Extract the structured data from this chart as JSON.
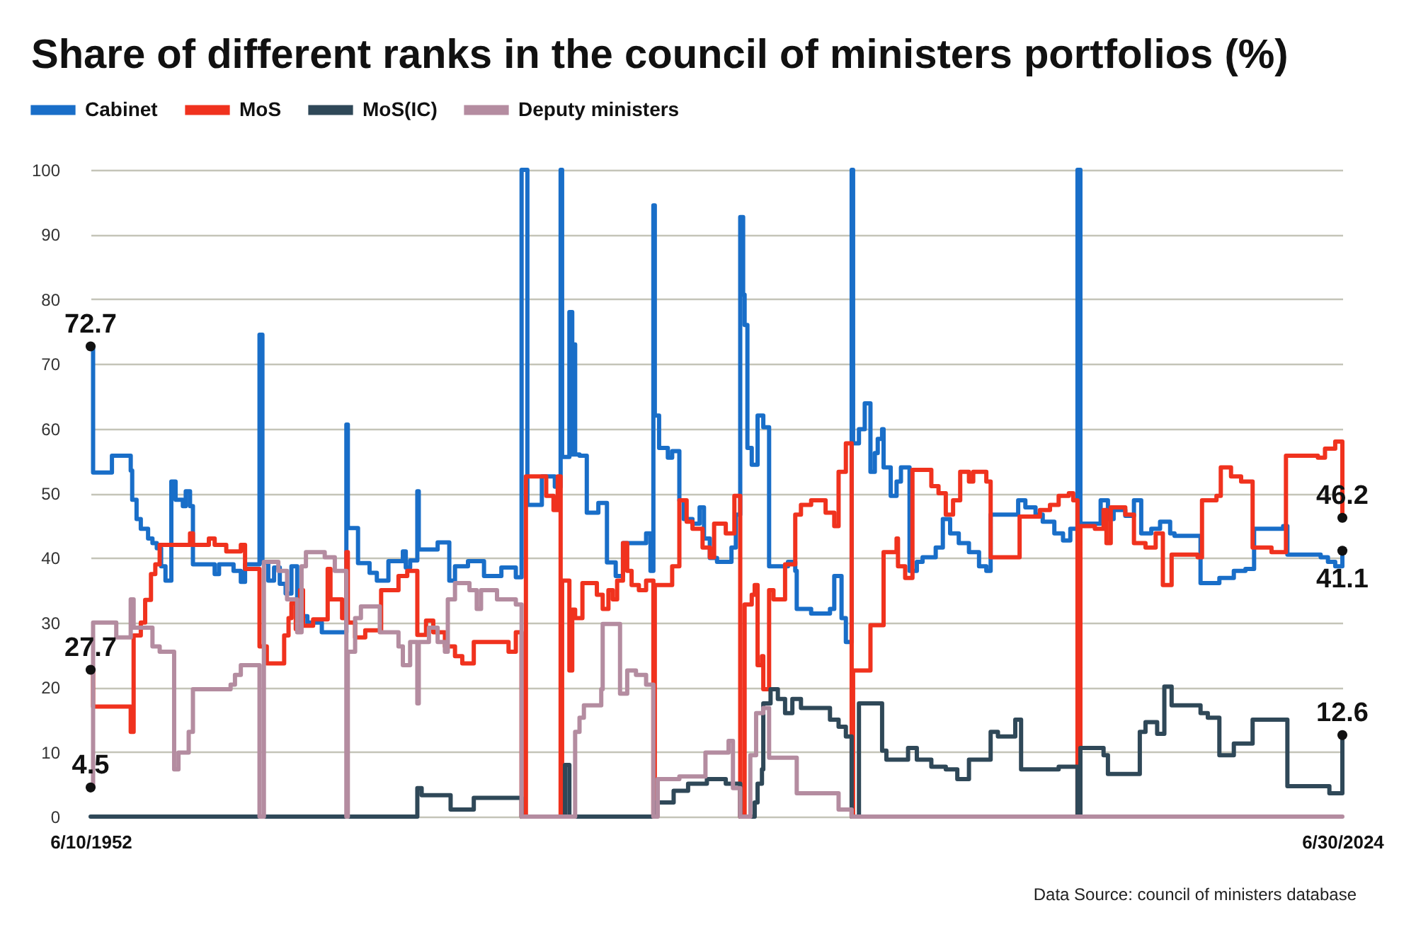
{
  "chart_data": {
    "type": "step",
    "title": "Share of different ranks in the council of ministers portfolios (%)",
    "xlim": [
      "1952-06-10",
      "2024-06-30"
    ],
    "xticks": [
      {
        "value": "1952-06-10",
        "label": "6/10/1952"
      },
      {
        "value": "2024-06-30",
        "label": "6/30/2024"
      }
    ],
    "ylim": [
      0,
      100
    ],
    "yticks": [
      0,
      10,
      20,
      30,
      40,
      50,
      60,
      70,
      80,
      90,
      100
    ],
    "grid": "y",
    "legend": "top left",
    "series": [
      {
        "name": "Cabinet",
        "color": "#196ec8",
        "x": [
          "1952-06-10",
          "1952-08",
          "1953-09",
          "1954-10",
          "1954-11",
          "1955-02",
          "1955-05",
          "1955-10",
          "1956-01",
          "1956-04",
          "1956-07",
          "1956-10",
          "1957-02",
          "1957-05",
          "1957-10",
          "1957-12",
          "1958-03",
          "1958-05",
          "1959-08",
          "1959-11",
          "1960-09",
          "1961-02",
          "1961-05",
          "1962-03",
          "1962-05",
          "1962-09",
          "1963-01",
          "1963-05",
          "1963-09",
          "1964-01",
          "1964-05",
          "1964-12",
          "1965-10",
          "1967-03",
          "1967-04",
          "1967-11",
          "1968-07",
          "1968-12",
          "1969-08",
          "1970-06",
          "1970-08",
          "1970-11",
          "1971-04",
          "1971-05",
          "1972-06",
          "1973-02",
          "1973-06",
          "1974-03",
          "1975-02",
          "1976-02",
          "1976-12",
          "1977-04",
          "1977-08",
          "1978-06",
          "1979-03",
          "1979-07",
          "1979-08",
          "1980-01",
          "1980-03",
          "1980-04",
          "1980-05",
          "1980-08",
          "1981-01",
          "1981-09",
          "1982-03",
          "1982-09",
          "1983-02",
          "1984-06",
          "1984-09",
          "1984-11",
          "1984-12",
          "1985-03",
          "1985-09",
          "1985-12",
          "1986-05",
          "1986-08",
          "1987-02",
          "1987-07",
          "1987-10",
          "1988-02",
          "1988-07",
          "1989-05",
          "1989-08",
          "1989-11",
          "1990-01",
          "1990-02",
          "1990-04",
          "1990-07",
          "1990-11",
          "1991-03",
          "1991-07",
          "1992-08",
          "1993-01",
          "1993-02",
          "1993-12",
          "1995-01",
          "1995-04",
          "1995-09",
          "1995-12",
          "1996-04",
          "1996-05",
          "1996-09",
          "1997-01",
          "1997-05",
          "1997-08",
          "1997-10",
          "1998-01",
          "1998-02",
          "1998-07",
          "1998-11",
          "1999-02",
          "1999-08",
          "2000-01",
          "2000-05",
          "2001-02",
          "2001-07",
          "2001-12",
          "2002-06",
          "2003-01",
          "2003-08",
          "2004-01",
          "2004-04",
          "2005-11",
          "2006-04",
          "2006-11",
          "2007-04",
          "2007-12",
          "2008-06",
          "2008-11",
          "2009-04",
          "2009-06",
          "2010-08",
          "2011-01",
          "2011-05",
          "2012-01",
          "2012-07",
          "2012-12",
          "2013-07",
          "2014-01",
          "2014-08",
          "2014-11",
          "2016-05",
          "2017-06",
          "2018-04",
          "2018-12",
          "2019-06",
          "2021-02",
          "2021-05",
          "2023-04",
          "2023-09",
          "2024-02",
          "2024-06-30"
        ],
        "values": [
          72.7,
          53.2,
          55.8,
          53.5,
          49,
          46,
          44.5,
          43,
          42.3,
          41.5,
          38.7,
          36.5,
          51.8,
          49,
          48,
          50.3,
          48,
          39,
          37.5,
          39,
          38,
          36.3,
          39,
          74.5,
          39.3,
          36.5,
          38.5,
          36,
          34.5,
          38.7,
          31,
          30,
          28.5,
          60.6,
          44.6,
          39.2,
          37.7,
          36.5,
          39.5,
          41,
          38.5,
          39.6,
          50.3,
          41.3,
          42.4,
          36.5,
          38.7,
          39.5,
          37.2,
          38.5,
          37,
          100,
          48.2,
          52.6,
          51,
          100,
          55.6,
          78,
          56,
          73,
          56,
          55.8,
          47,
          48.5,
          39.3,
          37.2,
          42.3,
          43.8,
          38,
          94.5,
          62,
          57,
          55.5,
          56.5,
          48.9,
          46,
          45.3,
          47.8,
          43,
          40,
          39.4,
          41.6,
          46.7,
          92.7,
          80.7,
          76,
          57,
          54.4,
          62,
          60.2,
          38.7,
          39.4,
          38,
          32.1,
          31.4,
          32.1,
          37.2,
          30.7,
          27,
          100,
          57.7,
          59.9,
          63.9,
          53.3,
          56.2,
          58.4,
          59.9,
          54,
          49.6,
          51.8,
          54,
          38,
          39.4,
          40.1,
          41.6,
          46,
          43.8,
          42.3,
          40.9,
          38.7,
          38,
          46.7,
          48.9,
          47.8,
          46.7,
          45.6,
          43.8,
          42.7,
          44.5,
          100,
          45.3,
          48.9,
          46,
          47.4,
          46.5,
          48.9,
          43.8,
          44.5,
          45.6,
          43.8,
          43.4,
          36.1,
          36.9,
          38,
          38.3,
          44.5,
          44.9,
          40.5,
          40.1,
          39.4,
          38.7,
          41.1
        ]
      },
      {
        "name": "MoS",
        "color": "#f0321e",
        "x": [
          "1952-06-10",
          "1952-08",
          "1954-10",
          "1954-12",
          "1955-05",
          "1955-08",
          "1955-12",
          "1956-03",
          "1956-06",
          "1958-03",
          "1958-05",
          "1959-04",
          "1959-08",
          "1960-04",
          "1961-02",
          "1961-05",
          "1962-03",
          "1962-08",
          "1963-08",
          "1963-11",
          "1964-01",
          "1964-04",
          "1964-07",
          "1964-09",
          "1965-04",
          "1966-02",
          "1966-04",
          "1966-12",
          "1967-03",
          "1967-04",
          "1967-09",
          "1968-04",
          "1969-03",
          "1970-03",
          "1970-09",
          "1971-04",
          "1971-10",
          "1972-03",
          "1972-11",
          "1973-06",
          "1973-11",
          "1974-07",
          "1976-07",
          "1976-12",
          "1977-04",
          "1977-07",
          "1978-09",
          "1979-02",
          "1979-05",
          "1979-07",
          "1979-08",
          "1980-01",
          "1980-03",
          "1980-05",
          "1980-10",
          "1981-08",
          "1981-12",
          "1982-04",
          "1982-07",
          "1982-10",
          "1983-02",
          "1983-05",
          "1983-08",
          "1984-01",
          "1984-06",
          "1984-11",
          "1984-12",
          "1985-12",
          "1986-05",
          "1986-10",
          "1987-02",
          "1987-09",
          "1988-02",
          "1988-05",
          "1989-01",
          "1989-07",
          "1989-11",
          "1990-02",
          "1990-07",
          "1990-09",
          "1990-11",
          "1991-02",
          "1991-03",
          "1991-07",
          "1991-10",
          "1992-06",
          "1993-01",
          "1993-05",
          "1993-12",
          "1994-10",
          "1995-04",
          "1995-07",
          "1995-12",
          "1996-04",
          "1996-05",
          "1997-05",
          "1998-02",
          "1998-11",
          "1998-12",
          "1999-05",
          "1999-10",
          "2000-11",
          "2001-04",
          "2001-09",
          "2002-02",
          "2002-07",
          "2003-01",
          "2003-04",
          "2004-01",
          "2004-04",
          "2005-12",
          "2007-02",
          "2007-09",
          "2008-03",
          "2008-10",
          "2009-01",
          "2009-04",
          "2009-06",
          "2010-04",
          "2010-10",
          "2010-12",
          "2011-03",
          "2012-01",
          "2012-07",
          "2013-03",
          "2013-10",
          "2014-03",
          "2014-09",
          "2016-03",
          "2016-06",
          "2017-04",
          "2017-07",
          "2018-02",
          "2018-09",
          "2019-05",
          "2020-06",
          "2021-04",
          "2023-02",
          "2023-07",
          "2024-02",
          "2024-06-30"
        ],
        "values": [
          22.7,
          17,
          13.1,
          28,
          30,
          33.5,
          37.5,
          39,
          42,
          43.8,
          42,
          43,
          42,
          41,
          42,
          38.3,
          26.3,
          23.7,
          28,
          30.7,
          33,
          29,
          35,
          29.5,
          30.5,
          38.3,
          33.6,
          30.7,
          40.9,
          30,
          27.7,
          28.8,
          35,
          37.2,
          38,
          28.1,
          30.3,
          28.5,
          26.3,
          24.8,
          23.7,
          27,
          25.5,
          28.5,
          0,
          52.6,
          49.6,
          47.4,
          52.6,
          0,
          36.5,
          22.6,
          32,
          30.7,
          36.1,
          34.3,
          32.1,
          35,
          33.6,
          36.5,
          42.3,
          38,
          35.8,
          35,
          36.5,
          0,
          35.8,
          38.7,
          48.9,
          45.6,
          44.5,
          41.6,
          40.1,
          45.3,
          43.8,
          49.6,
          0,
          32.8,
          34.3,
          35.8,
          23.4,
          24.8,
          19.7,
          35,
          33.6,
          39,
          46.7,
          48.2,
          48.9,
          47,
          44.9,
          53.3,
          57.7,
          0,
          22.6,
          29.6,
          40.9,
          43,
          38.7,
          36.9,
          53.6,
          51.1,
          50,
          46.7,
          48.9,
          53.3,
          51.8,
          53.3,
          51.8,
          40.1,
          46.4,
          47.4,
          48.2,
          49.6,
          50,
          48.9,
          0,
          44.9,
          44.5,
          47.4,
          42.3,
          47.8,
          46.7,
          42.3,
          41.6,
          43.8,
          35.8,
          40.5,
          40.1,
          48.9,
          49.6,
          54,
          52.6,
          51.8,
          41.6,
          40.9,
          55.8,
          55.5,
          56.9,
          58,
          46.2
        ]
      },
      {
        "name": "MoS(IC)",
        "color": "#2f4858",
        "x": [
          "1952-06-10",
          "1971-04",
          "1971-07",
          "1973-03",
          "1974-07",
          "1977-04",
          "1979-10",
          "1980-01",
          "1984-12",
          "1986-01",
          "1986-11",
          "1987-12",
          "1989-01",
          "1989-11",
          "1990-09",
          "1990-11",
          "1991-02",
          "1991-03",
          "1991-08",
          "1992-01",
          "1992-06",
          "1992-11",
          "1993-05",
          "1995-01",
          "1995-07",
          "1995-12",
          "1996-04",
          "1996-09",
          "1998-01",
          "1998-04",
          "1999-07",
          "2000-01",
          "2000-11",
          "2001-09",
          "2002-05",
          "2003-01",
          "2004-04",
          "2004-09",
          "2005-09",
          "2006-01",
          "2008-03",
          "2009-04",
          "2009-06",
          "2010-10",
          "2011-01",
          "2012-11",
          "2013-03",
          "2013-11",
          "2014-04",
          "2014-09",
          "2016-05",
          "2016-10",
          "2017-06",
          "2018-04",
          "2019-05",
          "2021-05",
          "2023-10",
          "2024-06-30"
        ],
        "values": [
          0,
          4.4,
          3.3,
          1.1,
          2.9,
          0,
          8,
          0,
          2.2,
          4,
          5.1,
          5.8,
          5.1,
          0,
          2.2,
          5.1,
          7.3,
          17.5,
          19.7,
          18.2,
          16,
          18.2,
          16.8,
          15,
          13.9,
          12.4,
          0,
          17.5,
          10.2,
          8.8,
          10.6,
          8.8,
          7.7,
          7.3,
          5.8,
          8.8,
          13.1,
          12.4,
          15,
          7.3,
          7.7,
          0,
          10.6,
          9.5,
          6.6,
          13.1,
          14.6,
          12.8,
          20.1,
          17.2,
          16,
          15.3,
          9.5,
          11.3,
          15,
          4.7,
          3.6,
          12.6
        ]
      },
      {
        "name": "Deputy ministers",
        "color": "#b48ca0",
        "x": [
          "1952-06-10",
          "1952-08",
          "1953-12",
          "1954-10",
          "1954-12",
          "1956-01",
          "1956-06",
          "1957-04",
          "1957-07",
          "1958-02",
          "1958-05",
          "1960-07",
          "1960-10",
          "1961-02",
          "1962-03",
          "1962-06",
          "1963-04",
          "1963-10",
          "1964-05",
          "1964-08",
          "1964-11",
          "1965-12",
          "1966-07",
          "1967-03",
          "1967-04",
          "1967-09",
          "1968-01",
          "1969-02",
          "1970-03",
          "1970-06",
          "1970-11",
          "1971-04",
          "1971-05",
          "1971-12",
          "1972-06",
          "1972-11",
          "1973-01",
          "1973-06",
          "1974-04",
          "1974-09",
          "1974-12",
          "1975-11",
          "1976-12",
          "1977-04",
          "1980-05",
          "1980-08",
          "1980-11",
          "1981-11",
          "1981-12",
          "1982-12",
          "1983-05",
          "1983-11",
          "1984-06",
          "1984-11",
          "1985-02",
          "1986-05",
          "1987-11",
          "1989-03",
          "1989-06",
          "1989-11",
          "1990-06",
          "1990-10",
          "1991-03",
          "1991-07",
          "1993-02",
          "1995-07",
          "1996-04",
          "2024-06-30"
        ],
        "values": [
          4.5,
          30,
          27.7,
          33.6,
          29.2,
          26.3,
          25.5,
          7.3,
          9.9,
          13.1,
          19.7,
          20.4,
          21.9,
          23.4,
          0,
          39.4,
          38,
          33.6,
          28.5,
          38.7,
          40.9,
          40.1,
          38,
          0,
          25.5,
          30.7,
          32.5,
          28.5,
          26.3,
          23.4,
          27,
          17.5,
          27,
          29.2,
          27,
          25.5,
          33.6,
          36.1,
          35,
          32.1,
          35,
          33.6,
          32.8,
          0,
          13.1,
          15.3,
          17.2,
          19.7,
          29.8,
          19,
          22.6,
          21.9,
          20.4,
          0,
          5.8,
          6.2,
          9.9,
          11.7,
          4.4,
          0,
          9.5,
          16,
          16.8,
          9.1,
          3.6,
          1.1,
          0,
          0
        ]
      }
    ],
    "annotations": [
      {
        "text": "72.7",
        "x": "1952-06-10",
        "y": 72.7
      },
      {
        "text": "27.7",
        "x": "1952-06-10",
        "y": 22.7
      },
      {
        "text": "4.5",
        "x": "1952-06-10",
        "y": 4.5
      },
      {
        "text": "46.2",
        "x": "2024-06-30",
        "y": 46.2
      },
      {
        "text": "41.1",
        "x": "2024-06-30",
        "y": 41.1
      },
      {
        "text": "12.6",
        "x": "2024-06-30",
        "y": 12.6
      },
      "Data Source: council of ministers database"
    ]
  }
}
